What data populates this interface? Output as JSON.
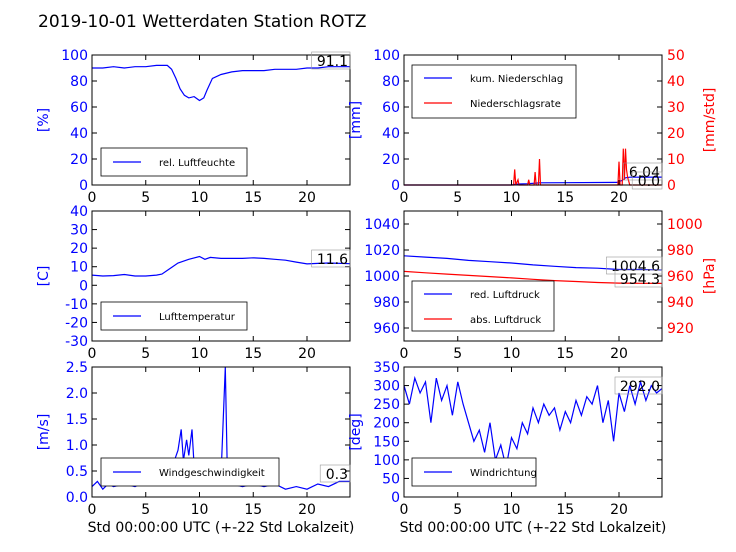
{
  "title": "2019-10-01 Wetterdaten Station ROTZ",
  "xlabel": "Std 00:00:00 UTC (+-22 Std Lokalzeit)",
  "colors": {
    "primary": "#0000ff",
    "secondary": "#ff0000",
    "light": "#8080ff",
    "axis": "#000000"
  },
  "chart_data": [
    {
      "type": "line",
      "xlim": [
        0,
        24
      ],
      "ylim": [
        0,
        100
      ],
      "xticks": [
        "0",
        "5",
        "10",
        "15",
        "20"
      ],
      "yticks": [
        "0",
        "20",
        "40",
        "60",
        "80",
        "100"
      ],
      "ylabel": "[%]",
      "legend": {
        "placement": "lower-left",
        "entries": [
          "rel. Luftfeuchte"
        ]
      },
      "annotation": "91.1",
      "series": [
        {
          "name": "rel. Luftfeuchte",
          "color": "#0000ff",
          "points": [
            [
              0,
              90
            ],
            [
              1,
              90
            ],
            [
              2,
              91
            ],
            [
              3,
              90
            ],
            [
              4,
              91
            ],
            [
              5,
              91
            ],
            [
              6,
              92
            ],
            [
              7,
              92
            ],
            [
              7.4,
              89
            ],
            [
              7.8,
              82
            ],
            [
              8.2,
              74
            ],
            [
              8.6,
              69
            ],
            [
              9,
              67
            ],
            [
              9.5,
              68
            ],
            [
              10,
              65
            ],
            [
              10.4,
              67
            ],
            [
              10.7,
              73
            ],
            [
              11.2,
              82
            ],
            [
              12,
              85
            ],
            [
              13,
              87
            ],
            [
              14,
              88
            ],
            [
              15,
              88
            ],
            [
              16,
              88
            ],
            [
              17,
              89
            ],
            [
              18,
              89
            ],
            [
              19,
              89
            ],
            [
              20,
              90
            ],
            [
              21,
              90
            ],
            [
              22,
              91
            ],
            [
              23,
              91
            ],
            [
              24,
              91
            ]
          ]
        }
      ]
    },
    {
      "type": "line",
      "xlim": [
        0,
        24
      ],
      "ylim": [
        0,
        100
      ],
      "ylim_right": [
        0,
        50
      ],
      "xticks": [
        "0",
        "5",
        "10",
        "15",
        "20"
      ],
      "yticks": [
        "0",
        "20",
        "40",
        "60",
        "80",
        "100"
      ],
      "yticks_right": [
        "0",
        "10",
        "20",
        "30",
        "40",
        "50"
      ],
      "ylabel": "[mm]",
      "ylabel_right": "[mm/std]",
      "legend": {
        "placement": "upper-left",
        "entries": [
          "kum. Niederschlag",
          "Niederschlagsrate"
        ]
      },
      "annotations": [
        "6.04",
        "0.0"
      ],
      "series": [
        {
          "name": "kum. Niederschlag",
          "axis": "left",
          "color": "#0000ff",
          "points": [
            [
              0,
              0
            ],
            [
              10,
              0
            ],
            [
              10.3,
              0.5
            ],
            [
              10.7,
              0.8
            ],
            [
              11.5,
              1.0
            ],
            [
              12.3,
              1.5
            ],
            [
              12.6,
              1.7
            ],
            [
              15,
              1.8
            ],
            [
              19.8,
              2.0
            ],
            [
              20.3,
              3.5
            ],
            [
              20.6,
              5.5
            ],
            [
              21,
              6.0
            ],
            [
              24,
              6.04
            ]
          ]
        },
        {
          "name": "Niederschlagsrate",
          "axis": "right",
          "color": "#ff0000",
          "points": [
            [
              0,
              0
            ],
            [
              10.2,
              0
            ],
            [
              10.3,
              6
            ],
            [
              10.4,
              0
            ],
            [
              10.6,
              2
            ],
            [
              10.7,
              0
            ],
            [
              11.5,
              0
            ],
            [
              11.6,
              2
            ],
            [
              11.7,
              0
            ],
            [
              12.1,
              0
            ],
            [
              12.2,
              5
            ],
            [
              12.3,
              0
            ],
            [
              12.5,
              0
            ],
            [
              12.6,
              10
            ],
            [
              12.7,
              0
            ],
            [
              19.9,
              0
            ],
            [
              20,
              9
            ],
            [
              20.1,
              0
            ],
            [
              20.3,
              0
            ],
            [
              20.4,
              14
            ],
            [
              20.5,
              2
            ],
            [
              20.6,
              14
            ],
            [
              20.7,
              6
            ],
            [
              20.8,
              3
            ],
            [
              21,
              0
            ],
            [
              24,
              0
            ]
          ]
        }
      ]
    },
    {
      "type": "line",
      "xlim": [
        0,
        24
      ],
      "ylim": [
        -30,
        40
      ],
      "xticks": [
        "0",
        "5",
        "10",
        "15",
        "20"
      ],
      "yticks": [
        "-30",
        "-20",
        "-10",
        "0",
        "10",
        "20",
        "30",
        "40"
      ],
      "ylabel": "[C]",
      "legend": {
        "placement": "lower-left",
        "entries": [
          "Lufttemperatur"
        ]
      },
      "annotation": "11.6",
      "series": [
        {
          "name": "Lufttemperatur",
          "color": "#0000ff",
          "points": [
            [
              0,
              5.5
            ],
            [
              1,
              5
            ],
            [
              2,
              5.2
            ],
            [
              3,
              5.8
            ],
            [
              4,
              5
            ],
            [
              5,
              5
            ],
            [
              6,
              5.5
            ],
            [
              6.5,
              6
            ],
            [
              7,
              8
            ],
            [
              7.5,
              10
            ],
            [
              8,
              12
            ],
            [
              9,
              14
            ],
            [
              10,
              15.5
            ],
            [
              10.5,
              14
            ],
            [
              11,
              15
            ],
            [
              12,
              14.5
            ],
            [
              13,
              14.5
            ],
            [
              14,
              14.5
            ],
            [
              15,
              14.8
            ],
            [
              16,
              14.5
            ],
            [
              17,
              14
            ],
            [
              18,
              13.5
            ],
            [
              19,
              12.5
            ],
            [
              20,
              11.5
            ],
            [
              21,
              11.8
            ],
            [
              22,
              12
            ],
            [
              24,
              11.6
            ]
          ]
        }
      ]
    },
    {
      "type": "line",
      "xlim": [
        0,
        24
      ],
      "ylim": [
        950,
        1050
      ],
      "ylim_right": [
        910,
        1010
      ],
      "xticks": [
        "0",
        "5",
        "10",
        "15",
        "20"
      ],
      "yticks": [
        "960",
        "980",
        "1000",
        "1020",
        "1040"
      ],
      "yticks_right": [
        "920",
        "940",
        "960",
        "980",
        "1000"
      ],
      "ylabel_right": "[hPa]",
      "legend": {
        "placement": "lower-left",
        "entries": [
          "red. Luftdruck",
          "abs. Luftdruck"
        ]
      },
      "annotations": [
        "1004.6",
        "954.3"
      ],
      "series": [
        {
          "name": "red. Luftdruck",
          "axis": "left",
          "color": "#0000ff",
          "points": [
            [
              0,
              1015.5
            ],
            [
              2,
              1014.5
            ],
            [
              4,
              1013.5
            ],
            [
              6,
              1012
            ],
            [
              8,
              1011
            ],
            [
              10,
              1010
            ],
            [
              12,
              1008.5
            ],
            [
              14,
              1007.5
            ],
            [
              16,
              1006.5
            ],
            [
              18,
              1006
            ],
            [
              20,
              1005
            ],
            [
              22,
              1005
            ],
            [
              24,
              1004.6
            ]
          ]
        },
        {
          "name": "abs. Luftdruck",
          "axis": "right",
          "color": "#ff0000",
          "points": [
            [
              0,
              963.5
            ],
            [
              2,
              962.5
            ],
            [
              4,
              961.5
            ],
            [
              6,
              960.5
            ],
            [
              8,
              959.5
            ],
            [
              10,
              958.5
            ],
            [
              12,
              957.5
            ],
            [
              14,
              956.5
            ],
            [
              16,
              955.8
            ],
            [
              18,
              955
            ],
            [
              20,
              954.5
            ],
            [
              22,
              954.4
            ],
            [
              24,
              954.3
            ]
          ]
        }
      ]
    },
    {
      "type": "line",
      "xlim": [
        0,
        24
      ],
      "ylim": [
        0,
        2.5
      ],
      "xticks": [
        "0",
        "5",
        "10",
        "15",
        "20"
      ],
      "yticks": [
        "0.0",
        "0.5",
        "1.0",
        "1.5",
        "2.0",
        "2.5"
      ],
      "ylabel": "[m/s]",
      "legend": {
        "placement": "lower-left",
        "entries": [
          "Windgeschwindigkeit"
        ]
      },
      "annotation": "0.3",
      "series": [
        {
          "name": "Windgeschwindigkeit",
          "color": "#0000ff",
          "points": [
            [
              0,
              0.2
            ],
            [
              0.5,
              0.3
            ],
            [
              1,
              0.15
            ],
            [
              1.5,
              0.25
            ],
            [
              2,
              0.2
            ],
            [
              3,
              0.25
            ],
            [
              4,
              0.2
            ],
            [
              5,
              0.3
            ],
            [
              6,
              0.35
            ],
            [
              6.5,
              0.3
            ],
            [
              7,
              0.5
            ],
            [
              7.5,
              0.6
            ],
            [
              8,
              0.9
            ],
            [
              8.3,
              1.3
            ],
            [
              8.5,
              0.7
            ],
            [
              8.8,
              1.1
            ],
            [
              9,
              0.8
            ],
            [
              9.3,
              1.3
            ],
            [
              9.5,
              0.6
            ],
            [
              10,
              0.5
            ],
            [
              10.5,
              0.3
            ],
            [
              11,
              0.25
            ],
            [
              12,
              0.4
            ],
            [
              12.4,
              2.5
            ],
            [
              12.6,
              0.3
            ],
            [
              13,
              0.25
            ],
            [
              14,
              0.2
            ],
            [
              15,
              0.25
            ],
            [
              16,
              0.2
            ],
            [
              17,
              0.25
            ],
            [
              18,
              0.15
            ],
            [
              19,
              0.2
            ],
            [
              20,
              0.15
            ],
            [
              21,
              0.25
            ],
            [
              22,
              0.2
            ],
            [
              23,
              0.3
            ],
            [
              24,
              0.3
            ]
          ]
        }
      ]
    },
    {
      "type": "line",
      "xlim": [
        0,
        24
      ],
      "ylim": [
        0,
        350
      ],
      "xticks": [
        "0",
        "5",
        "10",
        "15",
        "20"
      ],
      "yticks": [
        "0",
        "50",
        "100",
        "150",
        "200",
        "250",
        "300",
        "350"
      ],
      "ylabel": "[deg]",
      "legend": {
        "placement": "lower-left",
        "entries": [
          "Windrichtung"
        ]
      },
      "annotation": "292.0",
      "series": [
        {
          "name": "Windrichtung",
          "color": "#0000ff",
          "points": [
            [
              0,
              300
            ],
            [
              0.5,
              250
            ],
            [
              1,
              320
            ],
            [
              1.5,
              280
            ],
            [
              2,
              310
            ],
            [
              2.5,
              200
            ],
            [
              3,
              320
            ],
            [
              3.5,
              260
            ],
            [
              4,
              300
            ],
            [
              4.5,
              220
            ],
            [
              5,
              310
            ],
            [
              5.5,
              250
            ],
            [
              6,
              200
            ],
            [
              6.5,
              150
            ],
            [
              7,
              180
            ],
            [
              7.5,
              120
            ],
            [
              8,
              200
            ],
            [
              8.5,
              100
            ],
            [
              9,
              140
            ],
            [
              9.5,
              80
            ],
            [
              10,
              160
            ],
            [
              10.5,
              130
            ],
            [
              11,
              200
            ],
            [
              11.5,
              170
            ],
            [
              12,
              240
            ],
            [
              12.5,
              200
            ],
            [
              13,
              250
            ],
            [
              13.5,
              220
            ],
            [
              14,
              240
            ],
            [
              14.5,
              180
            ],
            [
              15,
              230
            ],
            [
              15.5,
              200
            ],
            [
              16,
              260
            ],
            [
              16.5,
              220
            ],
            [
              17,
              270
            ],
            [
              17.5,
              250
            ],
            [
              18,
              300
            ],
            [
              18.5,
              200
            ],
            [
              19,
              260
            ],
            [
              19.5,
              150
            ],
            [
              20,
              280
            ],
            [
              20.5,
              230
            ],
            [
              21,
              300
            ],
            [
              21.5,
              250
            ],
            [
              22,
              310
            ],
            [
              22.5,
              260
            ],
            [
              23,
              300
            ],
            [
              23.5,
              280
            ],
            [
              24,
              292
            ]
          ]
        }
      ]
    }
  ]
}
